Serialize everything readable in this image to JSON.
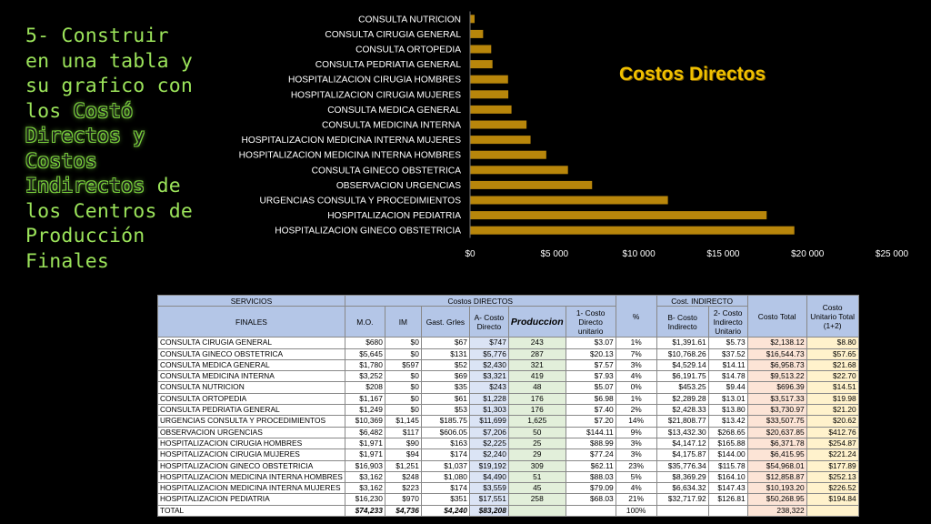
{
  "heading": {
    "lines": [
      {
        "text": "5- Construir",
        "hl": false
      },
      {
        "text": "en una tabla y",
        "hl": false
      },
      {
        "text": "su grafico con",
        "hl": false
      },
      {
        "text": "los ",
        "hl": false,
        "hl_text": "Costó"
      },
      {
        "text": "",
        "hl": true,
        "hl_text": "Directos y"
      },
      {
        "text": "",
        "hl": true,
        "hl_text": "Costos"
      },
      {
        "text": " de",
        "hl": true,
        "hl_text": "Indirectos"
      },
      {
        "text": "los Centros de",
        "hl": false
      },
      {
        "text": "Producción",
        "hl": false
      },
      {
        "text": "Finales",
        "hl": false
      }
    ]
  },
  "chart_data": {
    "type": "bar",
    "orientation": "horizontal",
    "title": "Costos Directos",
    "categories": [
      "CONSULTA NUTRICION",
      "CONSULTA CIRUGIA GENERAL",
      "CONSULTA ORTOPEDIA",
      "CONSULTA PEDRIATIA GENERAL",
      "HOSPITALIZACION CIRUGIA HOMBRES",
      "HOSPITALIZACION CIRUGIA MUJERES",
      "CONSULTA MEDICA GENERAL",
      "CONSULTA MEDICINA INTERNA",
      "HOSPITALIZACION MEDICINA INTERNA MUJERES",
      "HOSPITALIZACION MEDICINA INTERNA HOMBRES",
      "CONSULTA GINECO OBSTETRICA",
      "OBSERVACION URGENCIAS",
      "URGENCIAS CONSULTA Y PROCEDIMIENTOS",
      "HOSPITALIZACION PEDIATRIA",
      "HOSPITALIZACION GINECO OBSTETRICIA"
    ],
    "values": [
      243,
      747,
      1228,
      1303,
      2225,
      2240,
      2430,
      3321,
      3559,
      4490,
      5776,
      7206,
      11699,
      17551,
      19192
    ],
    "xlim": [
      0,
      25000
    ],
    "xticks": [
      "$0",
      "$5 000",
      "$10 000",
      "$15 000",
      "$20 000",
      "$25 000"
    ],
    "bar_color": "#b8860b",
    "grid": false
  },
  "table": {
    "header1": {
      "servicios": "SERVICIOS",
      "costos_directos": "Costos DIRECTOS",
      "cost_indirecto": "Cost. INDIRECTO",
      "costo_total": "Costo Total",
      "costo_unitario": "Costo Unitario Total (1+2)"
    },
    "header2": {
      "finales": "FINALES",
      "mo": "M.O.",
      "im": "IM",
      "gast": "Gast. Grles",
      "a_costo": "A- Costo Directo",
      "produccion": "Produccion",
      "c1": "1- Costo Directo unitario",
      "pct": "%",
      "b_costo": "B- Costo Indirecto",
      "c2": "2- Costo Indirecto Unitario"
    },
    "rows": [
      [
        "CONSULTA CIRUGIA GENERAL",
        "$680",
        "$0",
        "$67",
        "$747",
        "243",
        "$3.07",
        "1%",
        "$1,391.61",
        "$5.73",
        "$2,138.12",
        "$8.80"
      ],
      [
        "CONSULTA GINECO OBSTETRICA",
        "$5,645",
        "$0",
        "$131",
        "$5,776",
        "287",
        "$20.13",
        "7%",
        "$10,768.26",
        "$37.52",
        "$16,544.73",
        "$57.65"
      ],
      [
        "CONSULTA MEDICA GENERAL",
        "$1,780",
        "$597",
        "$52",
        "$2,430",
        "321",
        "$7.57",
        "3%",
        "$4,529.14",
        "$14.11",
        "$6,958.73",
        "$21.68"
      ],
      [
        "CONSULTA MEDICINA INTERNA",
        "$3,252",
        "$0",
        "$69",
        "$3,321",
        "419",
        "$7.93",
        "4%",
        "$6,191.75",
        "$14.78",
        "$9,513.22",
        "$22.70"
      ],
      [
        "CONSULTA NUTRICION",
        "$208",
        "$0",
        "$35",
        "$243",
        "48",
        "$5.07",
        "0%",
        "$453.25",
        "$9.44",
        "$696.39",
        "$14.51"
      ],
      [
        "CONSULTA ORTOPEDIA",
        "$1,167",
        "$0",
        "$61",
        "$1,228",
        "176",
        "$6.98",
        "1%",
        "$2,289.28",
        "$13.01",
        "$3,517.33",
        "$19.98"
      ],
      [
        "CONSULTA PEDRIATIA GENERAL",
        "$1,249",
        "$0",
        "$53",
        "$1,303",
        "176",
        "$7.40",
        "2%",
        "$2,428.33",
        "$13.80",
        "$3,730.97",
        "$21.20"
      ],
      [
        "URGENCIAS CONSULTA Y PROCEDIMIENTOS",
        "$10,369",
        "$1,145",
        "$185.75",
        "$11,699",
        "1,625",
        "$7.20",
        "14%",
        "$21,808.77",
        "$13.42",
        "$33,507.75",
        "$20.62"
      ],
      [
        "OBSERVACION URGENCIAS",
        "$6,482",
        "$117",
        "$606.05",
        "$7,206",
        "50",
        "$144.11",
        "9%",
        "$13,432.30",
        "$268.65",
        "$20,637.85",
        "$412.76"
      ],
      [
        "HOSPITALIZACION CIRUGIA HOMBRES",
        "$1,971",
        "$90",
        "$163",
        "$2,225",
        "25",
        "$88.99",
        "3%",
        "$4,147.12",
        "$165.88",
        "$6,371.78",
        "$254.87"
      ],
      [
        "HOSPITALIZACION CIRUGIA MUJERES",
        "$1,971",
        "$94",
        "$174",
        "$2,240",
        "29",
        "$77.24",
        "3%",
        "$4,175.87",
        "$144.00",
        "$6,415.95",
        "$221.24"
      ],
      [
        "HOSPITALIZACION GINECO OBSTETRICIA",
        "$16,903",
        "$1,251",
        "$1,037",
        "$19,192",
        "309",
        "$62.11",
        "23%",
        "$35,776.34",
        "$115.78",
        "$54,968.01",
        "$177.89"
      ],
      [
        "HOSPITALIZACION MEDICINA INTERNA HOMBRES",
        "$3,162",
        "$248",
        "$1,080",
        "$4,490",
        "51",
        "$88.03",
        "5%",
        "$8,369.29",
        "$164.10",
        "$12,858.87",
        "$252.13"
      ],
      [
        "HOSPITALIZACION MEDICINA INTERNA MUJERES",
        "$3,162",
        "$223",
        "$174",
        "$3,559",
        "45",
        "$79.09",
        "4%",
        "$6,634.32",
        "$147.43",
        "$10,193.20",
        "$226.52"
      ],
      [
        "HOSPITALIZACION PEDIATRIA",
        "$16,230",
        "$970",
        "$351",
        "$17,551",
        "258",
        "$68.03",
        "21%",
        "$32,717.92",
        "$126.81",
        "$50,268.95",
        "$194.84"
      ]
    ],
    "total": [
      "TOTAL",
      "$74,233",
      "$4,736",
      "$4,240",
      "$83,208",
      "",
      "",
      "100%",
      "",
      "",
      "238,322",
      ""
    ]
  }
}
